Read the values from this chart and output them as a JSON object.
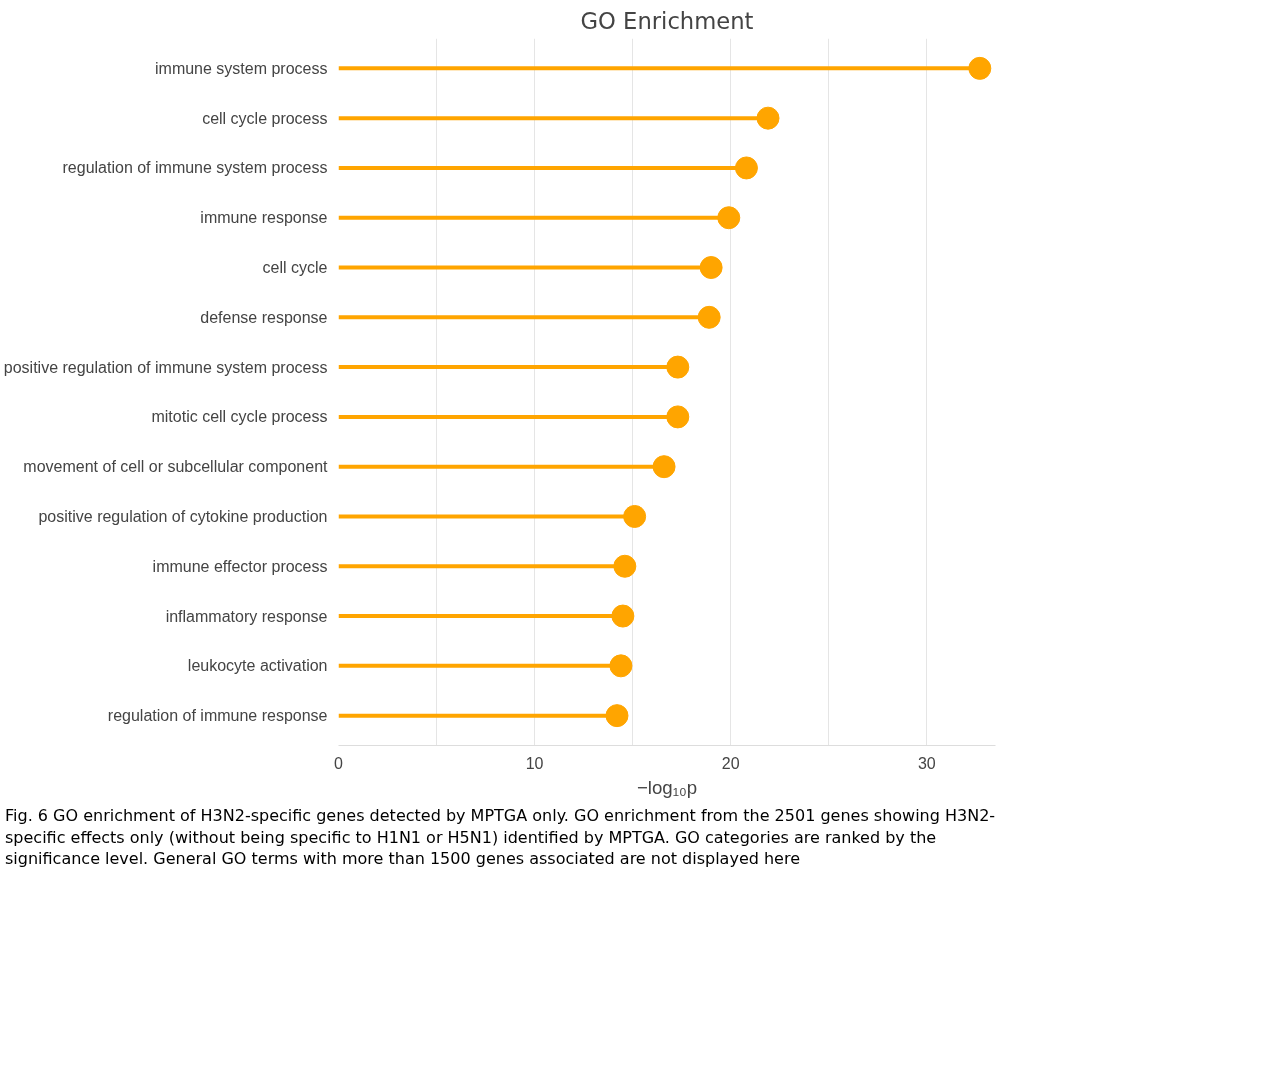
{
  "chart_data": {
    "type": "lollipop",
    "orientation": "horizontal",
    "title": "GO Enrichment",
    "xlabel": "−log₁₀p",
    "categories": [
      "immune system process",
      "cell cycle process",
      "regulation of immune system process",
      "immune response",
      "cell cycle",
      "defense response",
      "positive regulation of immune system process",
      "mitotic cell cycle process",
      "movement of cell or subcellular component",
      "positive regulation of cytokine production",
      "immune effector process",
      "inflammatory response",
      "leukocyte activation",
      "regulation of immune response"
    ],
    "values": [
      32.7,
      21.9,
      20.8,
      19.9,
      19.0,
      18.9,
      17.3,
      17.3,
      16.6,
      15.1,
      14.6,
      14.5,
      14.4,
      14.2
    ],
    "color": "#ffa500",
    "marker": "circle",
    "grid": "x",
    "xlim": [
      0,
      33.5
    ],
    "xticks": [
      0,
      {
        "value": 5,
        "label": null
      },
      10,
      {
        "value": 15,
        "label": null
      },
      20,
      {
        "value": 25,
        "label": null
      },
      30
    ],
    "annotations": [
      "Fig. 6 GO enrichment of H3N2-specific genes detected by MPTGA only. GO enrichment from the 2501 genes showing H3N2-specific effects only (without being specific to H1N1 or H5N1) identified by MPTGA. GO categories are ranked by the significance level. General GO terms with more than 1500 genes associated are not displayed here"
    ]
  }
}
